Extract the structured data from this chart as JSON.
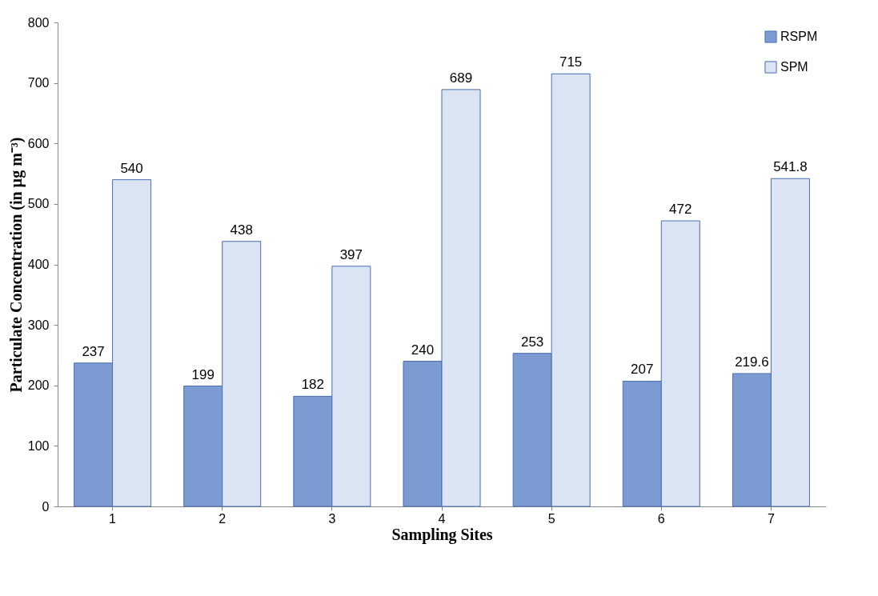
{
  "chart_data": {
    "type": "bar",
    "xlabel": "Sampling Sites",
    "ylabel": "Particulate Concentration (in µg m⁻³)",
    "categories": [
      "1",
      "2",
      "3",
      "4",
      "5",
      "6",
      "7"
    ],
    "series": [
      {
        "name": "RSPM",
        "color": "#7b9bd2",
        "values": [
          237,
          199,
          182,
          240,
          253,
          207,
          219.6
        ]
      },
      {
        "name": "SPM",
        "color": "#dae4f3",
        "values": [
          540,
          438,
          397,
          689,
          715,
          472,
          541.8
        ]
      }
    ],
    "ylim": [
      0,
      800
    ],
    "yticks": [
      0,
      100,
      200,
      300,
      400,
      500,
      600,
      700,
      800
    ],
    "grid": false,
    "legend": "top right",
    "data_labels": true
  }
}
